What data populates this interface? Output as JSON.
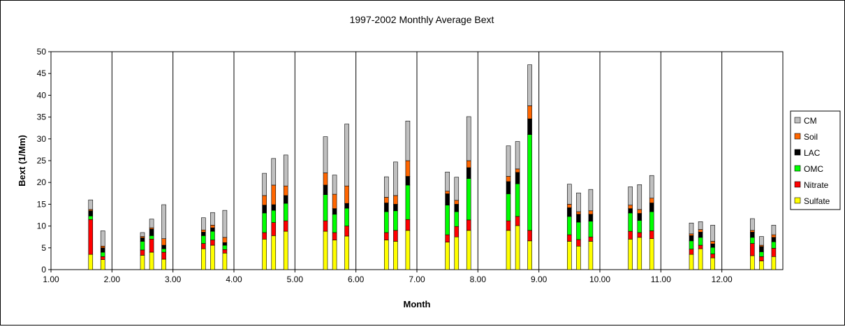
{
  "chart_data": {
    "type": "bar",
    "stacked": true,
    "title": "1997-2002 Monthly Average Bext",
    "xlabel": "Month",
    "ylabel": "Bext (1/Mm)",
    "xlim": [
      1,
      13
    ],
    "ylim": [
      0,
      50
    ],
    "y_ticks": [
      "0",
      "5",
      "10",
      "15",
      "20",
      "25",
      "30",
      "35",
      "40",
      "45",
      "50"
    ],
    "x_ticks": [
      "1.00",
      "2.00",
      "3.00",
      "4.00",
      "5.00",
      "6.00",
      "7.00",
      "8.00",
      "9.00",
      "10.00",
      "11.00",
      "12.00"
    ],
    "legend_position": "right",
    "series_colors": {
      "Sulfate": "#ffff00",
      "Nitrate": "#ff0000",
      "OMC": "#00ff00",
      "LAC": "#000000",
      "Soil": "#ff6600",
      "CM": "#c0c0c0"
    },
    "legend": [
      "CM",
      "Soil",
      "LAC",
      "OMC",
      "Nitrate",
      "Sulfate"
    ],
    "stack_order": [
      "Sulfate",
      "Nitrate",
      "OMC",
      "LAC",
      "Soil",
      "CM"
    ],
    "bars": [
      {
        "x": 1.65,
        "Sulfate": 3.5,
        "Nitrate": 8.0,
        "OMC": 0.8,
        "LAC": 1.2,
        "Soil": 0.3,
        "CM": 2.2
      },
      {
        "x": 1.85,
        "Sulfate": 2.3,
        "Nitrate": 0.7,
        "OMC": 1.0,
        "LAC": 1.0,
        "Soil": 0.4,
        "CM": 3.5
      },
      {
        "x": 2.5,
        "Sulfate": 3.3,
        "Nitrate": 1.2,
        "OMC": 2.0,
        "LAC": 0.8,
        "Soil": 0.3,
        "CM": 0.9
      },
      {
        "x": 2.65,
        "Sulfate": 4.0,
        "Nitrate": 3.0,
        "OMC": 0.8,
        "LAC": 1.5,
        "Soil": 0.3,
        "CM": 2.0
      },
      {
        "x": 2.85,
        "Sulfate": 2.4,
        "Nitrate": 1.6,
        "OMC": 0.8,
        "LAC": 0.8,
        "Soil": 1.5,
        "CM": 7.8
      },
      {
        "x": 3.5,
        "Sulfate": 4.8,
        "Nitrate": 1.2,
        "OMC": 1.8,
        "LAC": 0.8,
        "Soil": 0.5,
        "CM": 2.8
      },
      {
        "x": 3.65,
        "Sulfate": 5.6,
        "Nitrate": 1.2,
        "OMC": 2.0,
        "LAC": 0.8,
        "Soil": 0.6,
        "CM": 2.9
      },
      {
        "x": 3.85,
        "Sulfate": 3.8,
        "Nitrate": 0.8,
        "OMC": 1.0,
        "LAC": 0.6,
        "Soil": 1.2,
        "CM": 6.2
      },
      {
        "x": 4.5,
        "Sulfate": 7.0,
        "Nitrate": 1.5,
        "OMC": 4.5,
        "LAC": 1.8,
        "Soil": 2.2,
        "CM": 5.1
      },
      {
        "x": 4.65,
        "Sulfate": 7.8,
        "Nitrate": 3.0,
        "OMC": 2.8,
        "LAC": 1.3,
        "Soil": 4.5,
        "CM": 6.1
      },
      {
        "x": 4.85,
        "Sulfate": 8.8,
        "Nitrate": 2.4,
        "OMC": 4.0,
        "LAC": 1.8,
        "Soil": 2.2,
        "CM": 7.1
      },
      {
        "x": 5.5,
        "Sulfate": 8.8,
        "Nitrate": 2.4,
        "OMC": 6.0,
        "LAC": 2.2,
        "Soil": 2.8,
        "CM": 8.3
      },
      {
        "x": 5.65,
        "Sulfate": 6.8,
        "Nitrate": 1.7,
        "OMC": 4.2,
        "LAC": 1.3,
        "Soil": 3.3,
        "CM": 4.4
      },
      {
        "x": 5.85,
        "Sulfate": 7.7,
        "Nitrate": 2.3,
        "OMC": 4.1,
        "LAC": 1.1,
        "Soil": 4.0,
        "CM": 14.2
      },
      {
        "x": 6.5,
        "Sulfate": 6.8,
        "Nitrate": 1.7,
        "OMC": 4.8,
        "LAC": 2.0,
        "Soil": 1.3,
        "CM": 4.7
      },
      {
        "x": 6.65,
        "Sulfate": 6.5,
        "Nitrate": 2.5,
        "OMC": 4.5,
        "LAC": 1.5,
        "Soil": 2.0,
        "CM": 7.7
      },
      {
        "x": 6.85,
        "Sulfate": 9.0,
        "Nitrate": 2.5,
        "OMC": 7.9,
        "LAC": 2.0,
        "Soil": 3.6,
        "CM": 9.1
      },
      {
        "x": 7.5,
        "Sulfate": 6.3,
        "Nitrate": 1.7,
        "OMC": 6.8,
        "LAC": 2.6,
        "Soil": 0.6,
        "CM": 4.4
      },
      {
        "x": 7.65,
        "Sulfate": 7.5,
        "Nitrate": 2.4,
        "OMC": 3.4,
        "LAC": 1.7,
        "Soil": 0.9,
        "CM": 5.3
      },
      {
        "x": 7.85,
        "Sulfate": 9.0,
        "Nitrate": 2.4,
        "OMC": 9.5,
        "LAC": 2.5,
        "Soil": 1.6,
        "CM": 10.1
      },
      {
        "x": 8.5,
        "Sulfate": 9.0,
        "Nitrate": 2.2,
        "OMC": 6.2,
        "LAC": 2.8,
        "Soil": 1.2,
        "CM": 7.0
      },
      {
        "x": 8.65,
        "Sulfate": 10.1,
        "Nitrate": 2.1,
        "OMC": 7.5,
        "LAC": 2.6,
        "Soil": 0.8,
        "CM": 6.3
      },
      {
        "x": 8.85,
        "Sulfate": 6.6,
        "Nitrate": 2.4,
        "OMC": 22.0,
        "LAC": 3.6,
        "Soil": 3.0,
        "CM": 9.4
      },
      {
        "x": 9.5,
        "Sulfate": 6.5,
        "Nitrate": 1.5,
        "OMC": 4.2,
        "LAC": 2.0,
        "Soil": 0.8,
        "CM": 4.6
      },
      {
        "x": 9.65,
        "Sulfate": 5.4,
        "Nitrate": 1.5,
        "OMC": 4.0,
        "LAC": 1.8,
        "Soil": 0.6,
        "CM": 4.3
      },
      {
        "x": 9.85,
        "Sulfate": 6.5,
        "Nitrate": 1.0,
        "OMC": 3.6,
        "LAC": 1.6,
        "Soil": 0.8,
        "CM": 4.9
      },
      {
        "x": 10.5,
        "Sulfate": 7.0,
        "Nitrate": 1.8,
        "OMC": 4.2,
        "LAC": 1.0,
        "Soil": 0.8,
        "CM": 4.2
      },
      {
        "x": 10.65,
        "Sulfate": 7.4,
        "Nitrate": 1.1,
        "OMC": 2.8,
        "LAC": 1.6,
        "Soil": 0.9,
        "CM": 5.7
      },
      {
        "x": 10.85,
        "Sulfate": 7.1,
        "Nitrate": 1.8,
        "OMC": 4.4,
        "LAC": 2.0,
        "Soil": 1.1,
        "CM": 5.2
      },
      {
        "x": 11.5,
        "Sulfate": 3.5,
        "Nitrate": 1.2,
        "OMC": 1.9,
        "LAC": 1.2,
        "Soil": 0.4,
        "CM": 2.5
      },
      {
        "x": 11.65,
        "Sulfate": 4.8,
        "Nitrate": 0.8,
        "OMC": 1.8,
        "LAC": 1.2,
        "Soil": 0.6,
        "CM": 1.8
      },
      {
        "x": 11.85,
        "Sulfate": 2.7,
        "Nitrate": 0.9,
        "OMC": 1.5,
        "LAC": 0.8,
        "Soil": 0.6,
        "CM": 3.7
      },
      {
        "x": 12.5,
        "Sulfate": 3.2,
        "Nitrate": 2.8,
        "OMC": 1.4,
        "LAC": 1.2,
        "Soil": 0.4,
        "CM": 2.7
      },
      {
        "x": 12.65,
        "Sulfate": 2.0,
        "Nitrate": 1.0,
        "OMC": 1.1,
        "LAC": 1.2,
        "Soil": 0.3,
        "CM": 2.0
      },
      {
        "x": 12.85,
        "Sulfate": 3.0,
        "Nitrate": 1.9,
        "OMC": 1.5,
        "LAC": 1.0,
        "Soil": 0.6,
        "CM": 2.2
      }
    ]
  }
}
